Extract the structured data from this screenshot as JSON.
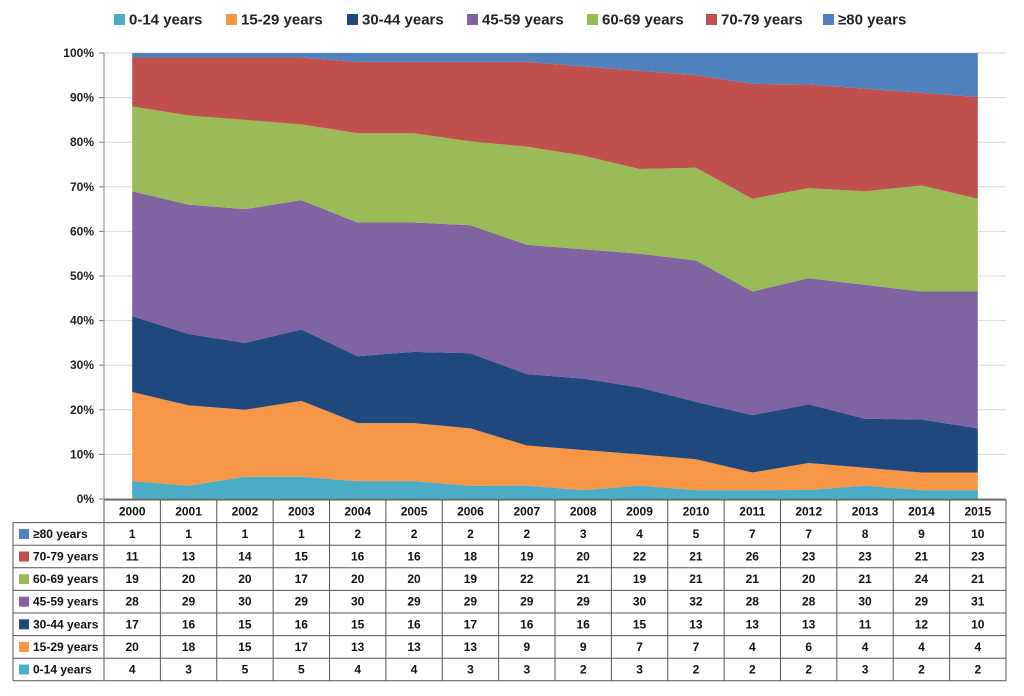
{
  "chart_data": {
    "type": "area",
    "stacked": "percent",
    "x": [
      "2000",
      "2001",
      "2002",
      "2003",
      "2004",
      "2005",
      "2006",
      "2007",
      "2008",
      "2009",
      "2010",
      "2011",
      "2012",
      "2013",
      "2014",
      "2015"
    ],
    "yticks": [
      "0%",
      "10%",
      "20%",
      "30%",
      "40%",
      "50%",
      "60%",
      "70%",
      "80%",
      "90%",
      "100%"
    ],
    "ylim": [
      0,
      100
    ],
    "legend_position": "top",
    "data_table": true,
    "series": [
      {
        "name": "0-14 years",
        "color": "#4bacc6",
        "values": [
          4,
          3,
          5,
          5,
          4,
          4,
          3,
          3,
          2,
          3,
          2,
          2,
          2,
          3,
          2,
          2
        ]
      },
      {
        "name": "15-29 years",
        "color": "#f79646",
        "values": [
          20,
          18,
          15,
          17,
          13,
          13,
          13,
          9,
          9,
          7,
          7,
          4,
          6,
          4,
          4,
          4
        ]
      },
      {
        "name": "30-44 years",
        "color": "#1f497d",
        "values": [
          17,
          16,
          15,
          16,
          15,
          16,
          17,
          16,
          16,
          15,
          13,
          13,
          13,
          11,
          12,
          10
        ]
      },
      {
        "name": "45-59 years",
        "color": "#8064a2",
        "values": [
          28,
          29,
          30,
          29,
          30,
          29,
          29,
          29,
          29,
          30,
          32,
          28,
          28,
          30,
          29,
          31
        ]
      },
      {
        "name": "60-69 years",
        "color": "#9bbb59",
        "values": [
          19,
          20,
          20,
          17,
          20,
          20,
          19,
          22,
          21,
          19,
          21,
          21,
          20,
          21,
          24,
          21
        ]
      },
      {
        "name": "70-79 years",
        "color": "#c0504d",
        "values": [
          11,
          13,
          14,
          15,
          16,
          16,
          18,
          19,
          20,
          22,
          21,
          26,
          23,
          23,
          21,
          23
        ]
      },
      {
        "name": "≥80 years",
        "color": "#4f81bd",
        "values": [
          1,
          1,
          1,
          1,
          2,
          2,
          2,
          2,
          3,
          4,
          5,
          7,
          7,
          8,
          9,
          10
        ]
      }
    ],
    "table_row_order": [
      "≥80 years",
      "70-79 years",
      "60-69 years",
      "45-59 years",
      "30-44 years",
      "15-29 years",
      "0-14 years"
    ]
  }
}
